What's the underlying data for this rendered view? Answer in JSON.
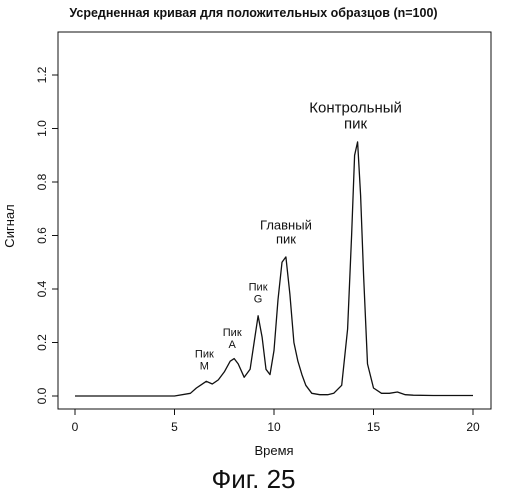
{
  "chart_data": {
    "type": "line",
    "title": "Усредненная кривая для положительных образцов (n=100)",
    "xlabel": "Время",
    "ylabel": "Сигнал",
    "xlim": [
      0,
      20
    ],
    "ylim": [
      0,
      1.35
    ],
    "xticks": [
      0,
      5,
      10,
      15,
      20
    ],
    "yticks": [
      "0.0",
      "0.2",
      "0.4",
      "0.6",
      "0.8",
      "1.0",
      "1.2"
    ],
    "grid": false,
    "series": [
      {
        "x": [
          0.0,
          1.0,
          2.0,
          3.0,
          4.0,
          5.0,
          5.8,
          6.1,
          6.3,
          6.6,
          6.9,
          7.2,
          7.5,
          7.8,
          8.0,
          8.2,
          8.5,
          8.8,
          9.0,
          9.2,
          9.4,
          9.6,
          9.8,
          10.0,
          10.2,
          10.4,
          10.6,
          10.8,
          11.0,
          11.2,
          11.4,
          11.6,
          11.9,
          12.3,
          12.7,
          13.0,
          13.4,
          13.7,
          13.9,
          14.05,
          14.2,
          14.35,
          14.5,
          14.7,
          15.0,
          15.4,
          15.8,
          16.2,
          16.6,
          17.0,
          18.0,
          19.0,
          20.0
        ],
        "y": [
          0.0,
          0.0,
          0.0,
          0.0,
          0.0,
          0.0,
          0.01,
          0.03,
          0.04,
          0.055,
          0.045,
          0.06,
          0.09,
          0.13,
          0.14,
          0.12,
          0.07,
          0.1,
          0.2,
          0.3,
          0.22,
          0.1,
          0.08,
          0.17,
          0.36,
          0.5,
          0.52,
          0.38,
          0.2,
          0.13,
          0.08,
          0.04,
          0.01,
          0.005,
          0.005,
          0.01,
          0.04,
          0.25,
          0.6,
          0.9,
          0.95,
          0.75,
          0.45,
          0.12,
          0.03,
          0.01,
          0.01,
          0.015,
          0.005,
          0.003,
          0.002,
          0.002,
          0.002
        ]
      }
    ],
    "annotations": [
      {
        "lines": [
          "Пик",
          "M"
        ],
        "x": 6.5,
        "y": 0.1
      },
      {
        "lines": [
          "Пик",
          "A"
        ],
        "x": 7.9,
        "y": 0.18
      },
      {
        "lines": [
          "Пик",
          "G"
        ],
        "x": 9.2,
        "y": 0.35
      },
      {
        "lines": [
          "Главный",
          "пик"
        ],
        "x": 10.6,
        "y": 0.57
      },
      {
        "lines": [
          "Контрольный",
          "пик"
        ],
        "x": 14.1,
        "y": 1.0
      }
    ]
  },
  "caption": "Фиг. 25"
}
